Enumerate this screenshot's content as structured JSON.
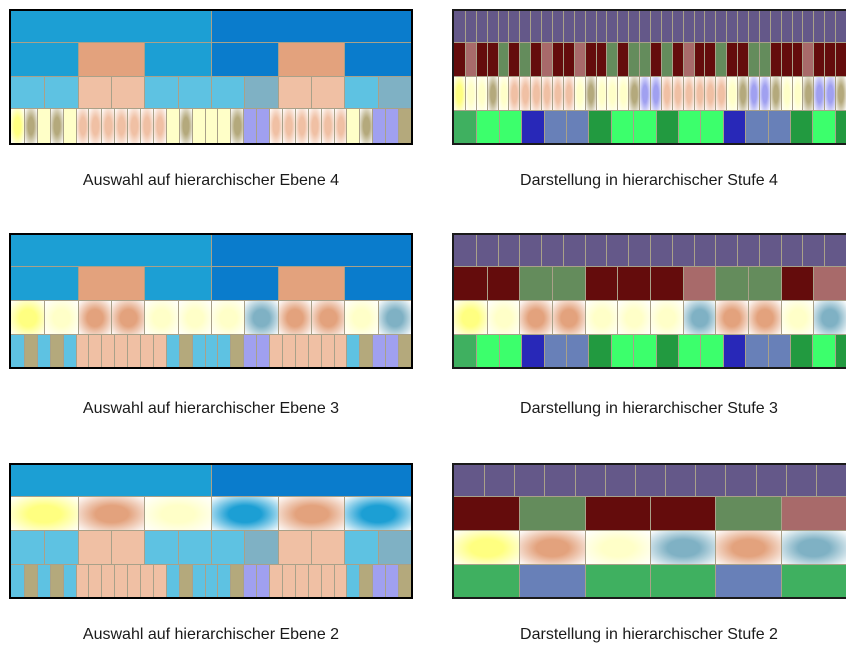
{
  "captions": {
    "left_4": "Auswahl auf hierarchischer Ebene 4",
    "right_4": "Darstellung in hierarchischer Stufe 4",
    "left_3": "Auswahl auf hierarchischer Ebene 3",
    "right_3": "Darstellung in hierarchischer Stufe 3",
    "left_2": "Auswahl auf hierarchischer Ebene 2",
    "right_2": "Darstellung in hierarchischer Stufe 2"
  },
  "colors": {
    "blue_light": "#1c9fd4",
    "blue_dark": "#0a7ccc",
    "sky": "#5ec2e2",
    "sky_dark": "#7fb1c4",
    "peach": "#e3a27d",
    "peach_light": "#f0c0a4",
    "cream": "#ffffc8",
    "yellow": "#ffff80",
    "olive": "#b4a97c",
    "lilac": "#a0a0f0",
    "purple": "#645889",
    "maroon": "#640c0c",
    "rose": "#a86a6a",
    "sage": "#648c5c",
    "green_bright": "#3cff6c",
    "green_mid": "#229a40",
    "green_soft": "#3fb060",
    "navy": "#2828b8",
    "steel": "#6880b8",
    "gridline": "#a9a189",
    "border": "#000000"
  }
}
